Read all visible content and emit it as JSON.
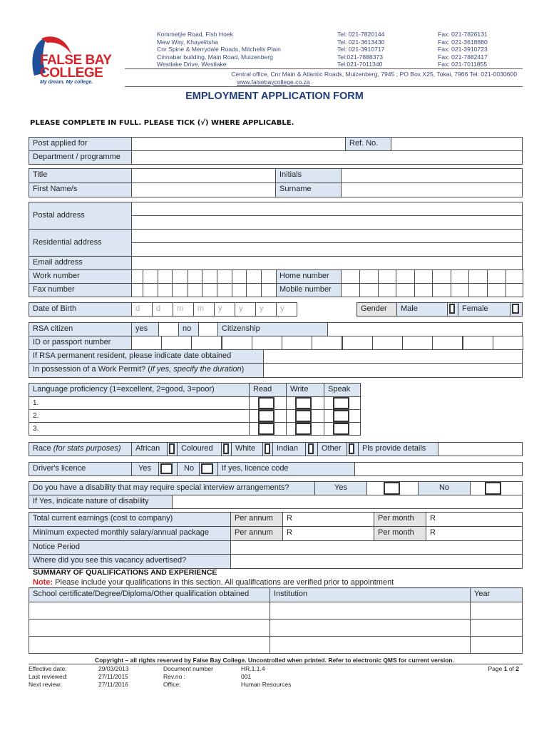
{
  "logo": {
    "line1": "FALSE BAY",
    "line2": "COLLEGE",
    "tagline": "My dream. My college.",
    "colors": {
      "red": "#d2232a",
      "blue": "#1f4e9a"
    }
  },
  "header": {
    "campuses": [
      {
        "address": "Kommetjie Road, Fish Hoek",
        "tel": "Tel: 021-7820144",
        "fax": "Fax: 021-7826131"
      },
      {
        "address": "Mew Way, Khayelitsha",
        "tel": "Tel: 021-3613430",
        "fax": "Fax: 021-3618880"
      },
      {
        "address": "Cnr Spine & Merrydale Roads, Mitchells Plain",
        "tel": "Tel: 021-3910717",
        "fax": "Fax: 021-3910723"
      },
      {
        "address": "Cinnabar building, Main Road, Muizenberg",
        "tel": "Tel:021-7888373",
        "fax": "Fax: 021-7882417"
      },
      {
        "address": "Westlake Drive, Westlake",
        "tel": "Tel:021-7011340",
        "fax": "Fax: 021-7011855"
      }
    ],
    "central_office": "Central office, Cnr Main & Atlantic Roads, Muizenberg, 7945  ;  PO Box X25, Tokai, 7966  Tel: 021-0030600",
    "website": "www.falsebaycollege.co.za"
  },
  "title": "EMPLOYMENT APPLICATION FORM",
  "instruction": "PLEASE COMPLETE IN FULL. PLEASE TICK (√) WHERE APPLICABLE.",
  "form": {
    "post": "Post applied for",
    "ref": "Ref. No.",
    "dept": "Department / programme",
    "title": "Title",
    "initials": "Initials",
    "first": "First Name/s",
    "surname": "Surname",
    "postal": "Postal address",
    "residential": "Residential address",
    "email": "Email address",
    "work": "Work number",
    "home": "Home number",
    "fax": "Fax number",
    "mobile": "Mobile number",
    "dob": "Date of Birth",
    "dob_placeholders": [
      "d",
      "d",
      "m",
      "m",
      "y",
      "y",
      "y",
      "y"
    ],
    "gender": "Gender",
    "male": "Male",
    "female": "Female",
    "rsa": "RSA citizen",
    "yes_lc": "yes",
    "no_lc": "no",
    "citizenship": "Citizenship",
    "id": "ID or passport number",
    "perm": "If RSA permanent resident, please indicate date obtained",
    "permit": "In possession of a Work Permit? (",
    "permit_it": "If yes, specify the duration",
    "permit_end": ")",
    "lang": "Language proficiency (1=excellent, 2=good, 3=poor)",
    "read": "Read",
    "write": "Write",
    "speak": "Speak",
    "lang_rows": [
      "1.",
      "2.",
      "3."
    ],
    "race": "Race ",
    "race_it": "(for stats purposes)",
    "races": [
      "African",
      "Coloured",
      "White",
      "Indian",
      "Other"
    ],
    "race_details": "Pls provide details",
    "licence": "Driver's licence",
    "yes": "Yes",
    "no": "No",
    "licence_code": "If yes, licence code",
    "disability": "Do you have a disability that may require special interview arrangements?",
    "disability_nature": "If Yes, indicate nature of disability",
    "earnings": "Total current earnings (cost to company)",
    "expected": "Minimum expected monthly salary/annual package",
    "per_annum": "Per annum",
    "per_month": "Per month",
    "r": "R",
    "notice": "Notice Period",
    "advert": "Where did you see this vacancy advertised?"
  },
  "qualifications": {
    "heading": "SUMMARY OF QUALIFICATIONS AND EXPERIENCE",
    "note_label": "Note:",
    "note": " Please include your qualifications in this section. All qualifications are verified prior to appointment",
    "columns": [
      "School certificate/Degree/Diploma/Other qualification obtained",
      "Institution",
      "Year"
    ]
  },
  "footer": {
    "copyright": "Copyright – all rights reserved by False Bay College. Uncontrolled when printed. Refer to electronic QMS for current version.",
    "effective_label": "Effective date:",
    "effective": "29/03/2013",
    "reviewed_label": "Last reviewed:",
    "reviewed": "27/11/2015",
    "next_label": "Next review:",
    "next": "27/11/2016",
    "docnum_label": "Document number",
    "docnum": "HR.1.1.4",
    "rev_label": "Rev.no :",
    "rev": "001",
    "office_label": "Office:",
    "office": "Human Resources",
    "page_prefix": "Page ",
    "page": "1",
    "page_of": " of ",
    "pages": "2"
  }
}
